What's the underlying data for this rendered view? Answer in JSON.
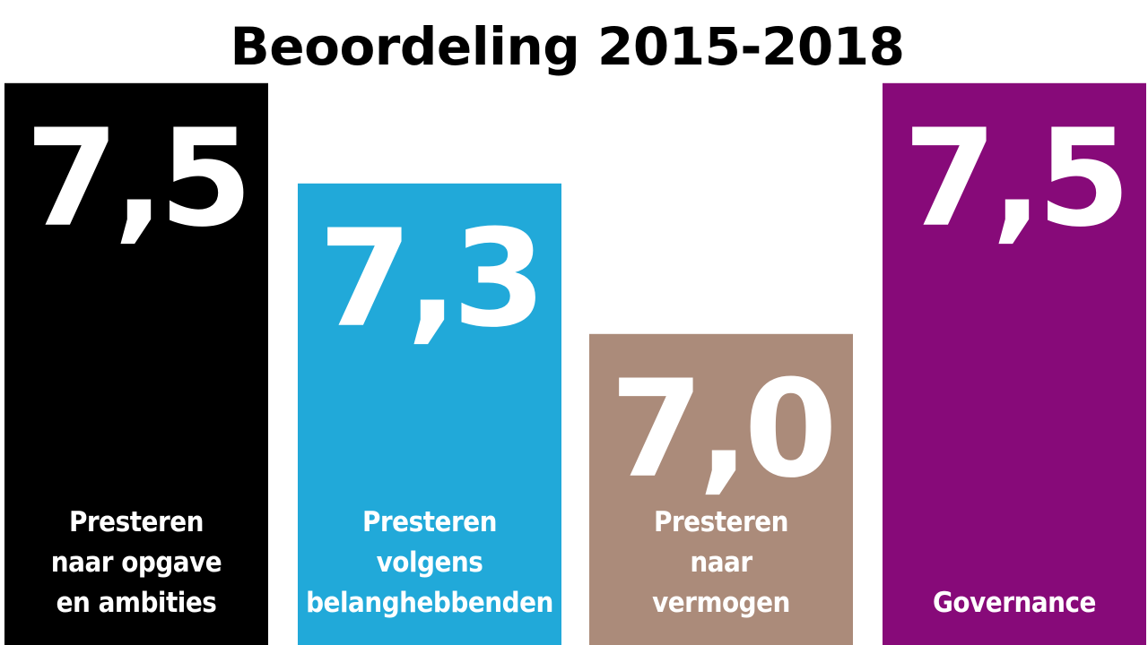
{
  "chart_data": {
    "type": "bar",
    "title": "Beoordeling 2015-2018",
    "categories": [
      [
        "Presteren",
        "naar opgave",
        "en ambities"
      ],
      [
        "Presteren",
        "volgens",
        "belanghebbenden"
      ],
      [
        "Presteren",
        "naar",
        "vermogen"
      ],
      [
        "Governance"
      ]
    ],
    "values": [
      7.5,
      7.3,
      7.0,
      7.5
    ],
    "value_labels": [
      "7,5",
      "7,3",
      "7,0",
      "7,5"
    ],
    "colors": [
      "#000000",
      "#21a9d9",
      "#ab8b7a",
      "#870a79"
    ],
    "xlabel": "",
    "ylabel": "",
    "grid": false,
    "legend": "none"
  }
}
